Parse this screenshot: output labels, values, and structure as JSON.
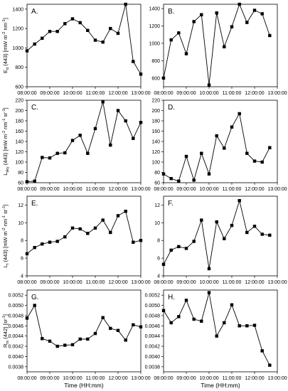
{
  "chart_data": [
    {
      "type": "line",
      "label": "A.",
      "ylabel_main": "E",
      "ylabel_sub": "d",
      "ylabel_rest": "(443) [mW m",
      "ylabel_sup1": "-2",
      "ylabel_mid": " nm",
      "ylabel_sup2": "-1",
      "ylabel_end": "]",
      "ylim": [
        600,
        1450
      ],
      "yticks": [
        600,
        800,
        1000,
        1200,
        1400
      ],
      "ytick_labels": [
        "600",
        "800",
        "1000",
        "1200",
        "1400"
      ],
      "x": [
        "08:00:00",
        "08:20:00",
        "08:40:00",
        "09:00:00",
        "09:20:00",
        "09:40:00",
        "10:00:00",
        "10:20:00",
        "10:40:00",
        "11:00:00",
        "11:20:00",
        "11:40:00",
        "12:00:00",
        "12:20:00",
        "12:40:00",
        "13:00:00"
      ],
      "values": [
        970,
        1040,
        1100,
        1170,
        1170,
        1250,
        1300,
        1260,
        1180,
        1080,
        1060,
        1200,
        1150,
        1450,
        860,
        730
      ]
    },
    {
      "type": "line",
      "label": "B.",
      "ylabel_main": "",
      "ylabel_sub": "",
      "ylabel_rest": "",
      "ylabel_sup1": "",
      "ylabel_mid": "",
      "ylabel_sup2": "",
      "ylabel_end": "",
      "ylim": [
        500,
        1450
      ],
      "yticks": [
        600,
        800,
        1000,
        1200,
        1400
      ],
      "ytick_labels": [
        "600",
        "800",
        "1000",
        "1200",
        "1400"
      ],
      "x": [
        "08:00:00",
        "08:20:00",
        "08:40:00",
        "09:00:00",
        "09:20:00",
        "09:40:00",
        "10:00:00",
        "10:20:00",
        "10:40:00",
        "11:00:00",
        "11:20:00",
        "11:40:00",
        "12:00:00",
        "12:20:00",
        "12:40:00"
      ],
      "values": [
        600,
        1040,
        1120,
        880,
        1250,
        1330,
        520,
        1350,
        960,
        1190,
        1450,
        1240,
        1380,
        1340,
        1090
      ]
    },
    {
      "type": "line",
      "label": "C.",
      "ylabel_main": "L",
      "ylabel_sub": "sky",
      "ylabel_rest": "(443) [mW m",
      "ylabel_sup1": "-2",
      "ylabel_mid": " nm",
      "ylabel_sup2": "-1",
      "ylabel_end": " sr",
      "ylabel_sup3": "-1",
      "ylabel_close": "]",
      "ylim": [
        60,
        220
      ],
      "yticks": [
        60,
        80,
        100,
        120,
        140,
        160,
        180,
        200,
        220
      ],
      "ytick_labels": [
        "60",
        "80",
        "100",
        "120",
        "140",
        "160",
        "180",
        "200",
        "220"
      ],
      "x": [
        "08:00:00",
        "08:20:00",
        "08:40:00",
        "09:00:00",
        "09:20:00",
        "09:40:00",
        "10:00:00",
        "10:20:00",
        "10:40:00",
        "11:00:00",
        "11:20:00",
        "11:40:00",
        "12:00:00",
        "12:20:00",
        "12:40:00",
        "13:00:00"
      ],
      "values": [
        62,
        63,
        109,
        108,
        117,
        118,
        142,
        152,
        117,
        165,
        217,
        133,
        200,
        180,
        146,
        177
      ]
    },
    {
      "type": "line",
      "label": "D.",
      "ylabel_main": "",
      "ylabel_sub": "",
      "ylabel_rest": "",
      "ylabel_sup1": "",
      "ylabel_mid": "",
      "ylabel_sup2": "",
      "ylabel_end": "",
      "ylim": [
        60,
        220
      ],
      "yticks": [
        60,
        80,
        100,
        120,
        140,
        160,
        180,
        200,
        220
      ],
      "ytick_labels": [
        "60",
        "80",
        "100",
        "120",
        "140",
        "160",
        "180",
        "200",
        "220"
      ],
      "x": [
        "08:00:00",
        "08:20:00",
        "08:40:00",
        "09:00:00",
        "09:20:00",
        "09:40:00",
        "10:00:00",
        "10:20:00",
        "10:40:00",
        "11:00:00",
        "11:20:00",
        "11:40:00",
        "12:00:00",
        "12:20:00",
        "12:40:00"
      ],
      "values": [
        77,
        68,
        63,
        111,
        65,
        117,
        77,
        151,
        127,
        168,
        194,
        117,
        102,
        100,
        128
      ]
    },
    {
      "type": "line",
      "label": "E.",
      "ylabel_main": "L",
      "ylabel_sub": "t",
      "ylabel_rest": "(443) [mW m",
      "ylabel_sup1": "-2",
      "ylabel_mid": " nm",
      "ylabel_sup2": "-1",
      "ylabel_end": " sr",
      "ylabel_sup3": "-1",
      "ylabel_close": "]",
      "ylim": [
        4,
        13
      ],
      "yticks": [
        4,
        6,
        8,
        10,
        12
      ],
      "ytick_labels": [
        "4",
        "6",
        "8",
        "10",
        "12"
      ],
      "x": [
        "08:00:00",
        "08:20:00",
        "08:40:00",
        "09:00:00",
        "09:20:00",
        "09:40:00",
        "10:00:00",
        "10:20:00",
        "10:40:00",
        "11:00:00",
        "11:20:00",
        "11:40:00",
        "12:00:00",
        "12:20:00",
        "12:40:00",
        "13:00:00"
      ],
      "values": [
        6.5,
        7.2,
        7.6,
        7.8,
        7.9,
        8.4,
        9.4,
        9.3,
        8.8,
        9.4,
        10.3,
        8.9,
        10.8,
        11.3,
        7.8,
        8.0
      ]
    },
    {
      "type": "line",
      "label": "F.",
      "ylabel_main": "",
      "ylabel_sub": "",
      "ylabel_rest": "",
      "ylabel_sup1": "",
      "ylabel_mid": "",
      "ylabel_sup2": "",
      "ylabel_end": "",
      "ylim": [
        4,
        13
      ],
      "yticks": [
        4,
        6,
        8,
        10,
        12
      ],
      "ytick_labels": [
        "4",
        "6",
        "8",
        "10",
        "12"
      ],
      "x": [
        "08:00:00",
        "08:20:00",
        "08:40:00",
        "09:00:00",
        "09:20:00",
        "09:40:00",
        "10:00:00",
        "10:20:00",
        "10:40:00",
        "11:00:00",
        "11:20:00",
        "11:40:00",
        "12:00:00",
        "12:20:00",
        "12:40:00"
      ],
      "values": [
        5.3,
        6.9,
        7.3,
        7.1,
        7.9,
        10.3,
        4.8,
        10.1,
        8.2,
        9.7,
        12.5,
        8.9,
        9.6,
        8.7,
        8.6
      ]
    },
    {
      "type": "line",
      "label": "G.",
      "ylabel_main": "R",
      "ylabel_sub": "rs",
      "ylabel_rest": "(442) [sr",
      "ylabel_sup1": "-1",
      "ylabel_mid": "",
      "ylabel_sup2": "",
      "ylabel_end": "]",
      "ylim": [
        0.0037,
        0.0053
      ],
      "yticks": [
        0.0038,
        0.004,
        0.0042,
        0.0044,
        0.0046,
        0.0048,
        0.005,
        0.0052
      ],
      "ytick_labels": [
        "0.0038",
        "0.0040",
        "0.0042",
        "0.0044",
        "0.0046",
        "0.0048",
        "0.0050",
        "0.0052"
      ],
      "x": [
        "08:00:00",
        "08:20:00",
        "08:40:00",
        "09:00:00",
        "09:20:00",
        "09:40:00",
        "10:00:00",
        "10:20:00",
        "10:40:00",
        "11:00:00",
        "11:20:00",
        "11:40:00",
        "12:00:00",
        "12:20:00",
        "12:40:00",
        "13:00:00"
      ],
      "values": [
        0.00475,
        0.005,
        0.00435,
        0.0043,
        0.0042,
        0.00422,
        0.00423,
        0.00434,
        0.00434,
        0.00445,
        0.00476,
        0.00455,
        0.00451,
        0.00432,
        0.00462,
        0.00458
      ]
    },
    {
      "type": "line",
      "label": "H.",
      "ylabel_main": "",
      "ylabel_sub": "",
      "ylabel_rest": "",
      "ylabel_sup1": "",
      "ylabel_mid": "",
      "ylabel_sup2": "",
      "ylabel_end": "",
      "ylim": [
        0.0037,
        0.0053
      ],
      "yticks": [
        0.0038,
        0.004,
        0.0042,
        0.0044,
        0.0046,
        0.0048,
        0.005,
        0.0052
      ],
      "ytick_labels": [
        "0.0038",
        "0.0040",
        "0.0042",
        "0.0044",
        "0.0046",
        "0.0048",
        "0.0050",
        "0.0052"
      ],
      "x": [
        "08:00:00",
        "08:20:00",
        "08:40:00",
        "09:00:00",
        "09:20:00",
        "09:40:00",
        "10:00:00",
        "10:20:00",
        "10:40:00",
        "11:00:00",
        "11:20:00",
        "11:40:00",
        "12:00:00",
        "12:20:00",
        "12:40:00"
      ],
      "values": [
        0.0049,
        0.00466,
        0.00478,
        0.0051,
        0.00473,
        0.00469,
        0.00525,
        0.0044,
        0.00466,
        0.00501,
        0.0046,
        0.0046,
        0.00461,
        0.00411,
        0.00383
      ]
    }
  ],
  "xaxis": {
    "xlim_hours": [
      8,
      13
    ],
    "tick_labels": [
      "08:00:00",
      "09:00:00",
      "10:00:00",
      "11:00:00",
      "12:00:00",
      "13:00:00"
    ],
    "xlabel": "Time (HH:mm)"
  }
}
